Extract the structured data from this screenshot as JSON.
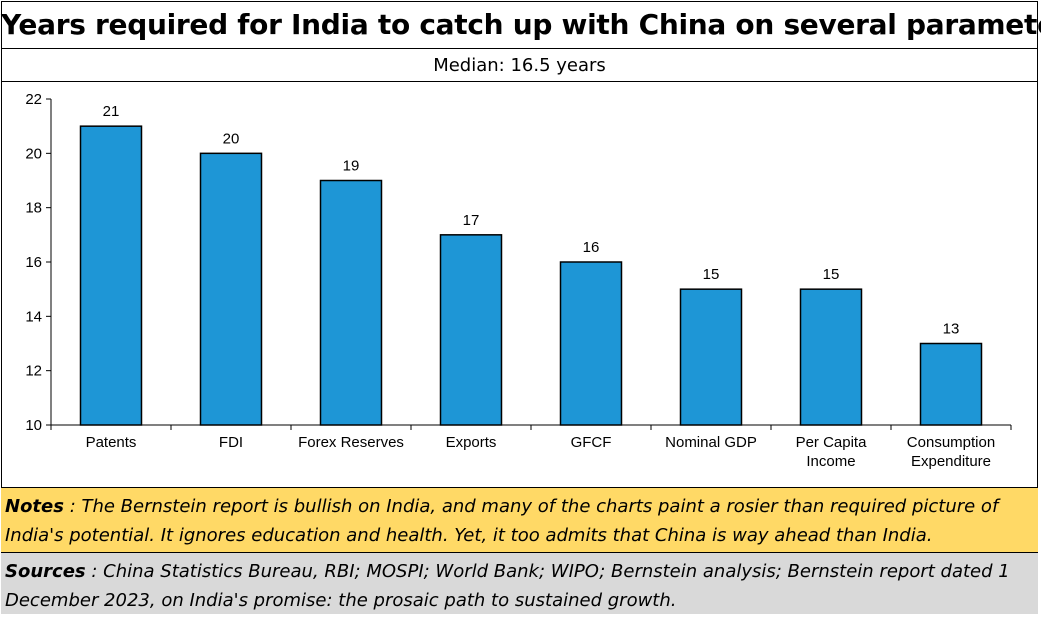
{
  "title": "Years required for India to catch up with China on several parameters",
  "subtitle": "Median: 16.5 years",
  "notes": {
    "label": "Notes",
    "text": " : The Bernstein report is bullish on India, and many of the charts  paint a rosier than required picture of India's potential.  It ignores education and health. Yet, it too admits that China is way ahead than India."
  },
  "sources": {
    "label": "Sources",
    "text": " : China Statistics Bureau, RBI; MOSPI; World Bank; WIPO; Bernstein analysis; Bernstein report dated 1 December 2023, on India's promise: the prosaic path to sustained growth."
  },
  "colors": {
    "bar": "#1e96d6",
    "notes_bg": "#ffd966",
    "sources_bg": "#d9d9d9"
  },
  "chart_data": {
    "type": "bar",
    "title": "",
    "xlabel": "",
    "ylabel": "",
    "categories": [
      [
        "Patents"
      ],
      [
        "FDI"
      ],
      [
        "Forex Reserves"
      ],
      [
        "Exports"
      ],
      [
        "GFCF"
      ],
      [
        "Nominal GDP"
      ],
      [
        "Per Capita",
        "Income"
      ],
      [
        "Consumption",
        "Expenditure"
      ]
    ],
    "values": [
      21,
      20,
      19,
      17,
      16,
      15,
      15,
      13
    ],
    "ylim": [
      10,
      22
    ],
    "yticks": [
      10,
      12,
      14,
      16,
      18,
      20,
      22
    ],
    "grid": false,
    "data_labels": true
  }
}
